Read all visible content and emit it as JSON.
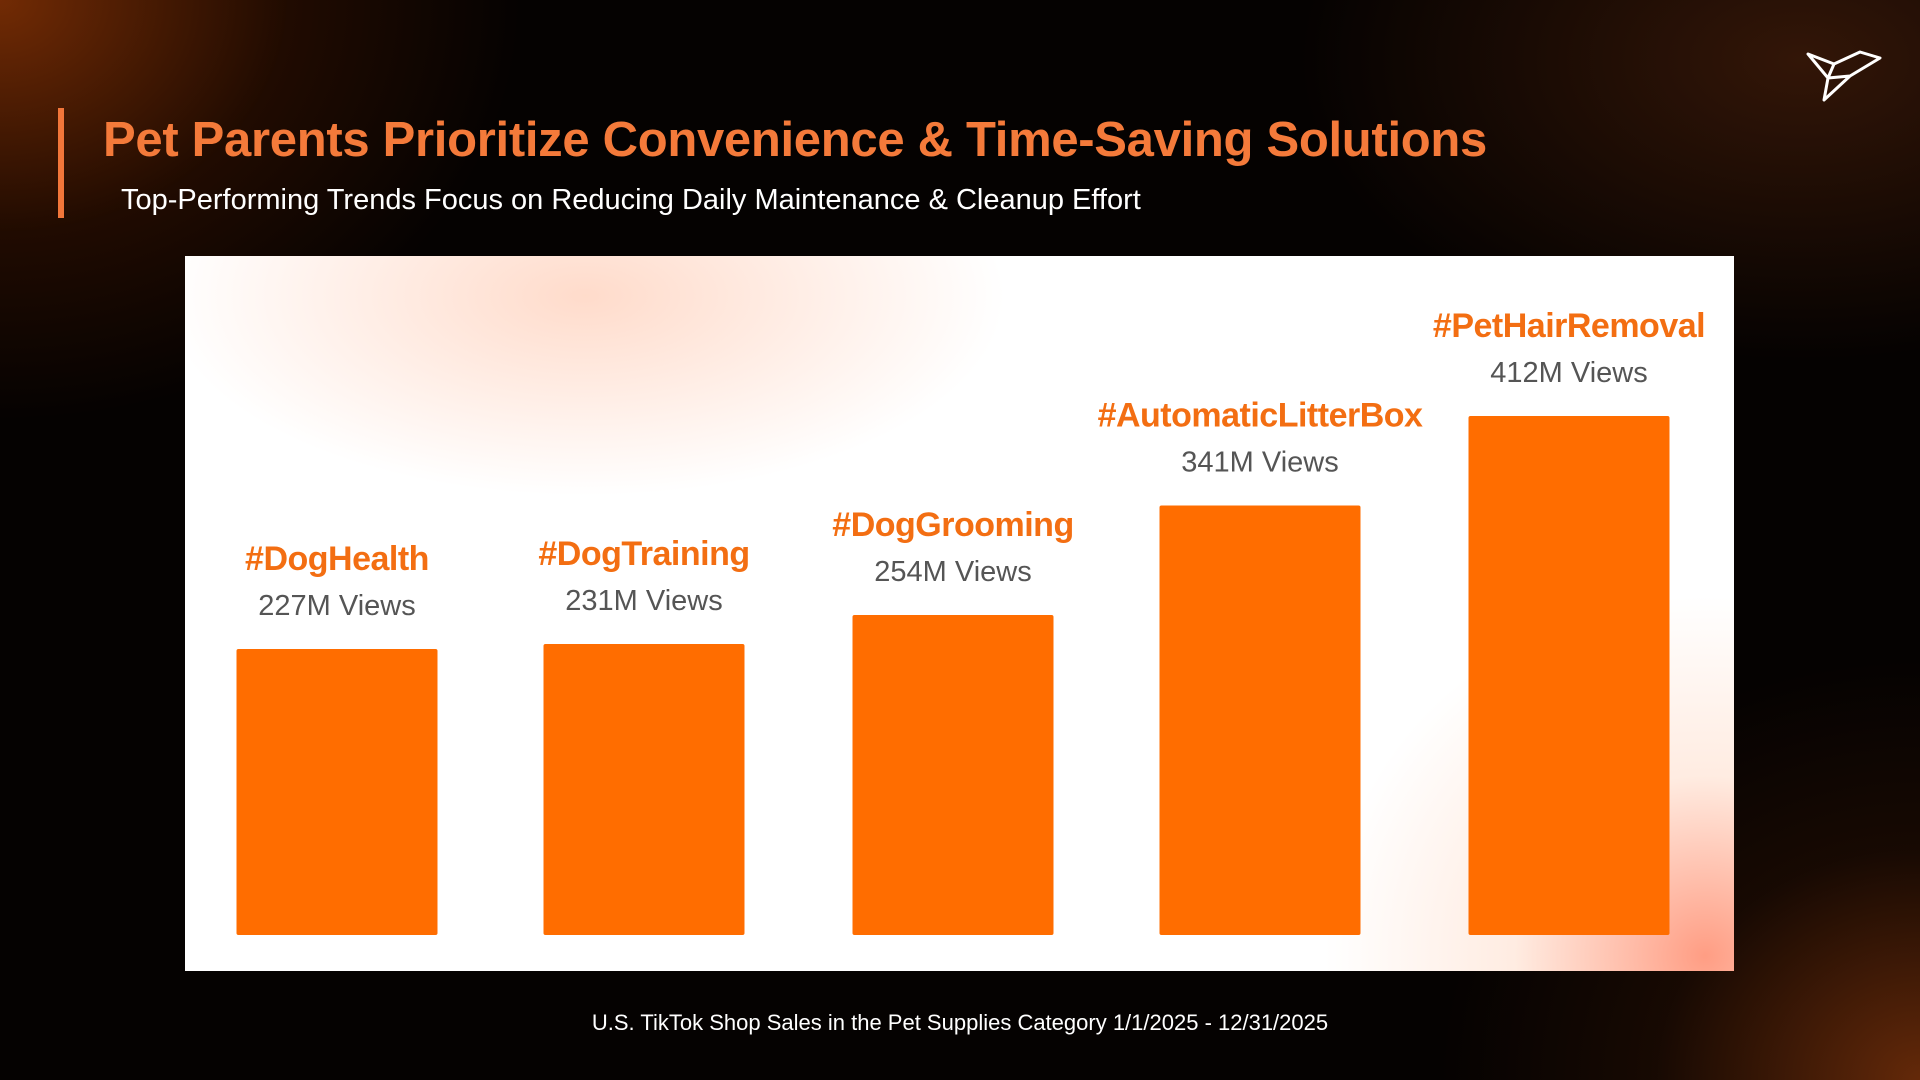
{
  "chart_data": {
    "type": "bar",
    "title": "Pet Parents Prioritize Convenience & Time-Saving Solutions",
    "subtitle": "Top-Performing Trends Focus on Reducing Daily Maintenance & Cleanup Effort",
    "categories": [
      "#DogHealth",
      "#DogTraining",
      "#DogGrooming",
      "#AutomaticLitterBox",
      "#PetHairRemoval"
    ],
    "values": [
      227,
      231,
      254,
      341,
      412
    ],
    "value_labels": [
      "227M Views",
      "231M Views",
      "254M Views",
      "341M Views",
      "412M Views"
    ],
    "color": "#ff6d00",
    "footnote": "U.S. TikTok Shop Sales in the Pet Supplies Category 1/1/2025 - 12/31/2025"
  }
}
